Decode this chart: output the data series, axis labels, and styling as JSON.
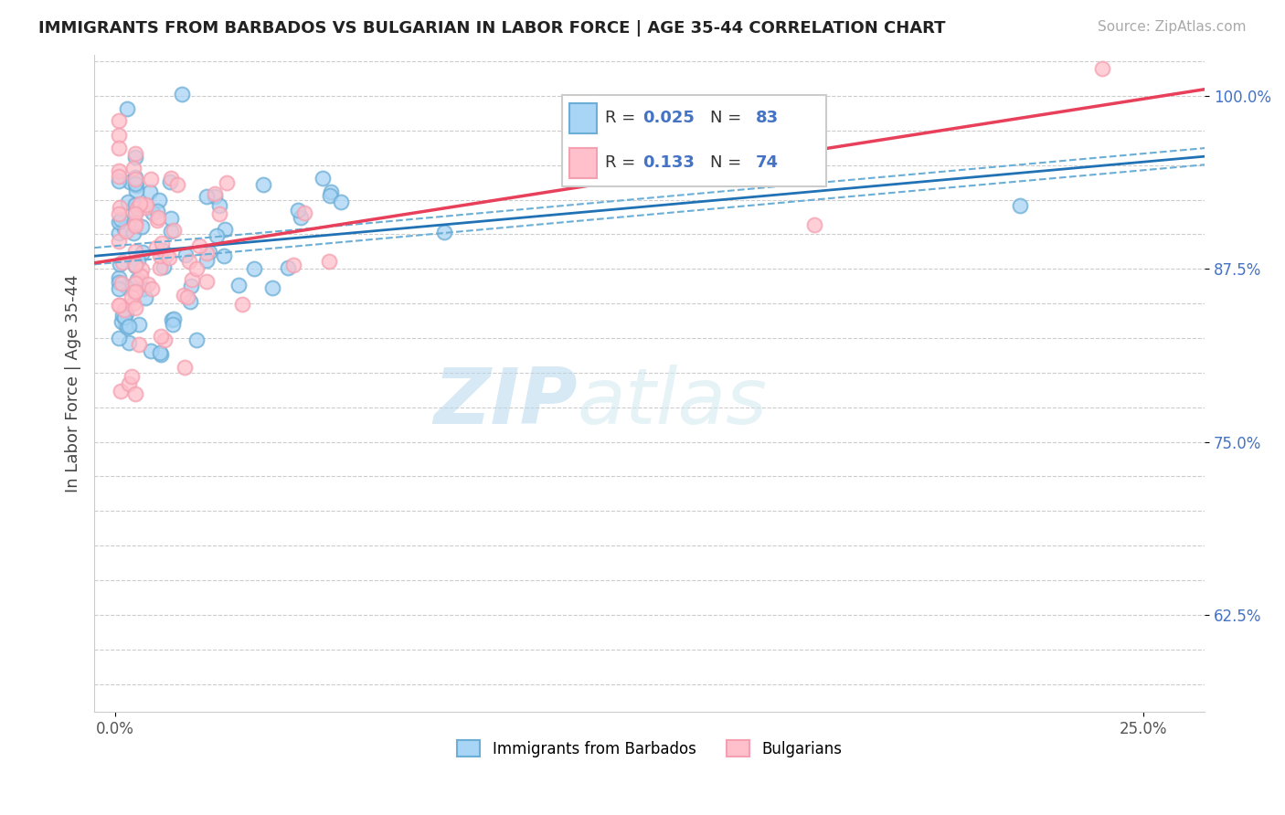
{
  "title": "IMMIGRANTS FROM BARBADOS VS BULGARIAN IN LABOR FORCE | AGE 35-44 CORRELATION CHART",
  "source": "Source: ZipAtlas.com",
  "ylabel": "In Labor Force | Age 35-44",
  "ylim": [
    0.555,
    1.03
  ],
  "xlim": [
    -0.005,
    0.265
  ],
  "R_blue": 0.025,
  "N_blue": 83,
  "R_pink": 0.133,
  "N_pink": 74,
  "blue_face_color": "#a8d4f5",
  "blue_edge_color": "#6baed6",
  "pink_face_color": "#ffc0cb",
  "pink_edge_color": "#f4a0b0",
  "trend_blue_color": "#2171b5",
  "trend_pink_color": "#e8405a",
  "trend_blue_dash_color": "#6baed6",
  "watermark_zip": "ZIP",
  "watermark_atlas": "atlas",
  "legend_entries": [
    "Immigrants from Barbados",
    "Bulgarians"
  ],
  "ytick_positions": [
    0.625,
    0.75,
    0.875,
    1.0
  ],
  "ytick_labels": [
    "62.5%",
    "75.0%",
    "87.5%",
    "100.0%"
  ],
  "xtick_positions": [
    0.0,
    0.25
  ],
  "xtick_labels": [
    "0.0%",
    "25.0%"
  ]
}
